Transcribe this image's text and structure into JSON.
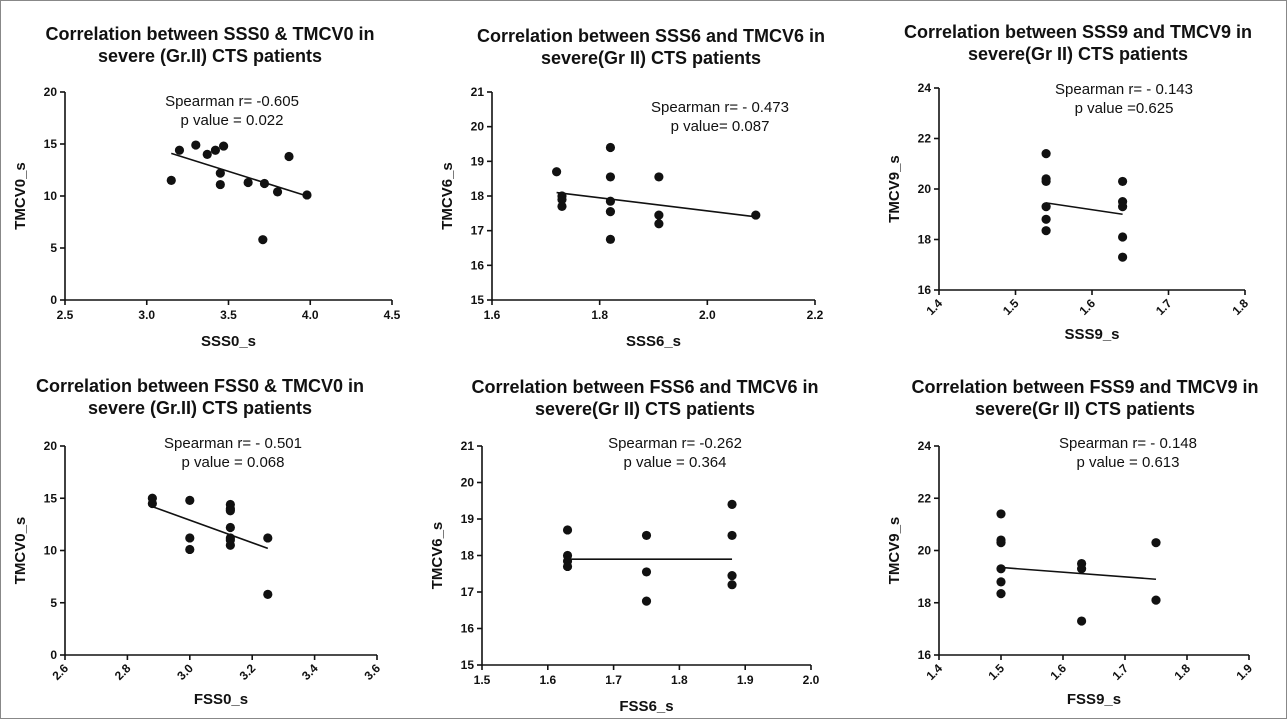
{
  "chart_data": [
    {
      "type": "scatter",
      "title": [
        "Correlation between SSS0 & TMCV0 in",
        "severe (Gr.II) CTS patients"
      ],
      "xlabel": "SSS0_s",
      "ylabel": "TMCV0_s",
      "xlim": [
        2.5,
        4.5
      ],
      "ylim": [
        0,
        20
      ],
      "xticks": [
        "2.5",
        "3.0",
        "3.5",
        "4.0",
        "4.5"
      ],
      "yticks": [
        "0",
        "5",
        "10",
        "15",
        "20"
      ],
      "rotate_xticks": false,
      "annotation": [
        "Spearman r= -0.605",
        "p value = 0.022"
      ],
      "points": [
        [
          3.15,
          11.5
        ],
        [
          3.2,
          14.4
        ],
        [
          3.3,
          14.9
        ],
        [
          3.37,
          14.0
        ],
        [
          3.42,
          14.4
        ],
        [
          3.47,
          14.8
        ],
        [
          3.45,
          12.2
        ],
        [
          3.45,
          11.1
        ],
        [
          3.62,
          11.3
        ],
        [
          3.71,
          5.8
        ],
        [
          3.72,
          11.2
        ],
        [
          3.8,
          10.4
        ],
        [
          3.87,
          13.8
        ],
        [
          3.98,
          10.1
        ]
      ],
      "fit": [
        [
          3.15,
          14.1
        ],
        [
          3.98,
          10.0
        ]
      ]
    },
    {
      "type": "scatter",
      "title": [
        "Correlation between SSS6  and TMCV6  in",
        "severe(Gr II) CTS patients"
      ],
      "xlabel": "SSS6_s",
      "ylabel": "TMCV6_s",
      "xlim": [
        1.6,
        2.2
      ],
      "ylim": [
        15,
        21
      ],
      "xticks": [
        "1.6",
        "1.8",
        "2.0",
        "2.2"
      ],
      "yticks": [
        "15",
        "16",
        "17",
        "18",
        "19",
        "20",
        "21"
      ],
      "rotate_xticks": false,
      "annotation": [
        "Spearman r= - 0.473",
        "p value= 0.087"
      ],
      "points": [
        [
          1.72,
          18.7
        ],
        [
          1.73,
          18.0
        ],
        [
          1.73,
          17.9
        ],
        [
          1.73,
          17.7
        ],
        [
          1.82,
          19.4
        ],
        [
          1.82,
          18.55
        ],
        [
          1.82,
          17.85
        ],
        [
          1.82,
          17.55
        ],
        [
          1.82,
          16.75
        ],
        [
          1.91,
          18.55
        ],
        [
          1.91,
          17.45
        ],
        [
          1.91,
          17.2
        ],
        [
          2.09,
          17.45
        ]
      ],
      "fit": [
        [
          1.72,
          18.1
        ],
        [
          2.09,
          17.4
        ]
      ]
    },
    {
      "type": "scatter",
      "title": [
        "Correlation between SSS9 and TMCV9  in",
        "severe(Gr II) CTS patients"
      ],
      "xlabel": "SSS9_s",
      "ylabel": "TMCV9_s",
      "xlim": [
        1.4,
        1.8
      ],
      "ylim": [
        16,
        24
      ],
      "xticks": [
        "1.4",
        "1.5",
        "1.6",
        "1.7",
        "1.8"
      ],
      "yticks": [
        "16",
        "18",
        "20",
        "22",
        "24"
      ],
      "rotate_xticks": true,
      "annotation": [
        "Spearman r= - 0.143",
        "p value =0.625"
      ],
      "points": [
        [
          1.54,
          21.4
        ],
        [
          1.54,
          20.4
        ],
        [
          1.54,
          20.3
        ],
        [
          1.54,
          19.3
        ],
        [
          1.54,
          18.8
        ],
        [
          1.54,
          18.35
        ],
        [
          1.64,
          20.3
        ],
        [
          1.64,
          19.5
        ],
        [
          1.64,
          19.3
        ],
        [
          1.64,
          18.1
        ],
        [
          1.64,
          17.3
        ]
      ],
      "fit": [
        [
          1.54,
          19.45
        ],
        [
          1.64,
          19.0
        ]
      ]
    },
    {
      "type": "scatter",
      "title": [
        "Correlation between FSS0 & TMCV0 in",
        "severe (Gr.II) CTS patients"
      ],
      "xlabel": "FSS0_s",
      "ylabel": "TMCV0_s",
      "xlim": [
        2.6,
        3.6
      ],
      "ylim": [
        0,
        20
      ],
      "xticks": [
        "2.6",
        "2.8",
        "3.0",
        "3.2",
        "3.4",
        "3.6"
      ],
      "yticks": [
        "0",
        "5",
        "10",
        "15",
        "20"
      ],
      "rotate_xticks": true,
      "annotation": [
        "Spearman r= - 0.501",
        "p value = 0.068"
      ],
      "points": [
        [
          2.88,
          15.0
        ],
        [
          2.88,
          14.5
        ],
        [
          3.0,
          14.8
        ],
        [
          3.0,
          11.2
        ],
        [
          3.0,
          10.1
        ],
        [
          3.13,
          14.4
        ],
        [
          3.13,
          14.0
        ],
        [
          3.13,
          13.8
        ],
        [
          3.13,
          12.2
        ],
        [
          3.13,
          11.2
        ],
        [
          3.13,
          11.0
        ],
        [
          3.13,
          10.5
        ],
        [
          3.25,
          11.2
        ],
        [
          3.25,
          5.8
        ]
      ],
      "fit": [
        [
          2.88,
          14.2
        ],
        [
          3.25,
          10.2
        ]
      ]
    },
    {
      "type": "scatter",
      "title": [
        "Correlation between FSS6  and TMCV6  in",
        "severe(Gr II) CTS patients"
      ],
      "xlabel": "FSS6_s",
      "ylabel": "TMCV6_s",
      "xlim": [
        1.5,
        2.0
      ],
      "ylim": [
        15,
        21
      ],
      "xticks": [
        "1.5",
        "1.6",
        "1.7",
        "1.8",
        "1.9",
        "2.0"
      ],
      "yticks": [
        "15",
        "16",
        "17",
        "18",
        "19",
        "20",
        "21"
      ],
      "rotate_xticks": false,
      "annotation": [
        "Spearman r= -0.262",
        "p value = 0.364"
      ],
      "points": [
        [
          1.63,
          18.7
        ],
        [
          1.63,
          18.0
        ],
        [
          1.63,
          17.85
        ],
        [
          1.63,
          17.7
        ],
        [
          1.75,
          18.55
        ],
        [
          1.75,
          17.55
        ],
        [
          1.75,
          16.75
        ],
        [
          1.88,
          19.4
        ],
        [
          1.88,
          18.55
        ],
        [
          1.88,
          17.45
        ],
        [
          1.88,
          17.2
        ]
      ],
      "fit": [
        [
          1.63,
          17.9
        ],
        [
          1.88,
          17.9
        ]
      ]
    },
    {
      "type": "scatter",
      "title": [
        "Correlation between FSS9 and TMCV9  in",
        "severe(Gr II) CTS patients"
      ],
      "xlabel": "FSS9_s",
      "ylabel": "TMCV9_s",
      "xlim": [
        1.4,
        1.9
      ],
      "ylim": [
        16,
        24
      ],
      "xticks": [
        "1.4",
        "1.5",
        "1.6",
        "1.7",
        "1.8",
        "1.9"
      ],
      "yticks": [
        "16",
        "18",
        "20",
        "22",
        "24"
      ],
      "rotate_xticks": true,
      "annotation": [
        "Spearman r= - 0.148",
        "p value = 0.613"
      ],
      "points": [
        [
          1.5,
          21.4
        ],
        [
          1.5,
          20.4
        ],
        [
          1.5,
          20.3
        ],
        [
          1.5,
          19.3
        ],
        [
          1.5,
          18.8
        ],
        [
          1.5,
          18.35
        ],
        [
          1.63,
          19.5
        ],
        [
          1.63,
          19.3
        ],
        [
          1.63,
          17.3
        ],
        [
          1.75,
          20.3
        ],
        [
          1.75,
          18.1
        ]
      ],
      "fit": [
        [
          1.5,
          19.35
        ],
        [
          1.75,
          18.9
        ]
      ]
    }
  ]
}
